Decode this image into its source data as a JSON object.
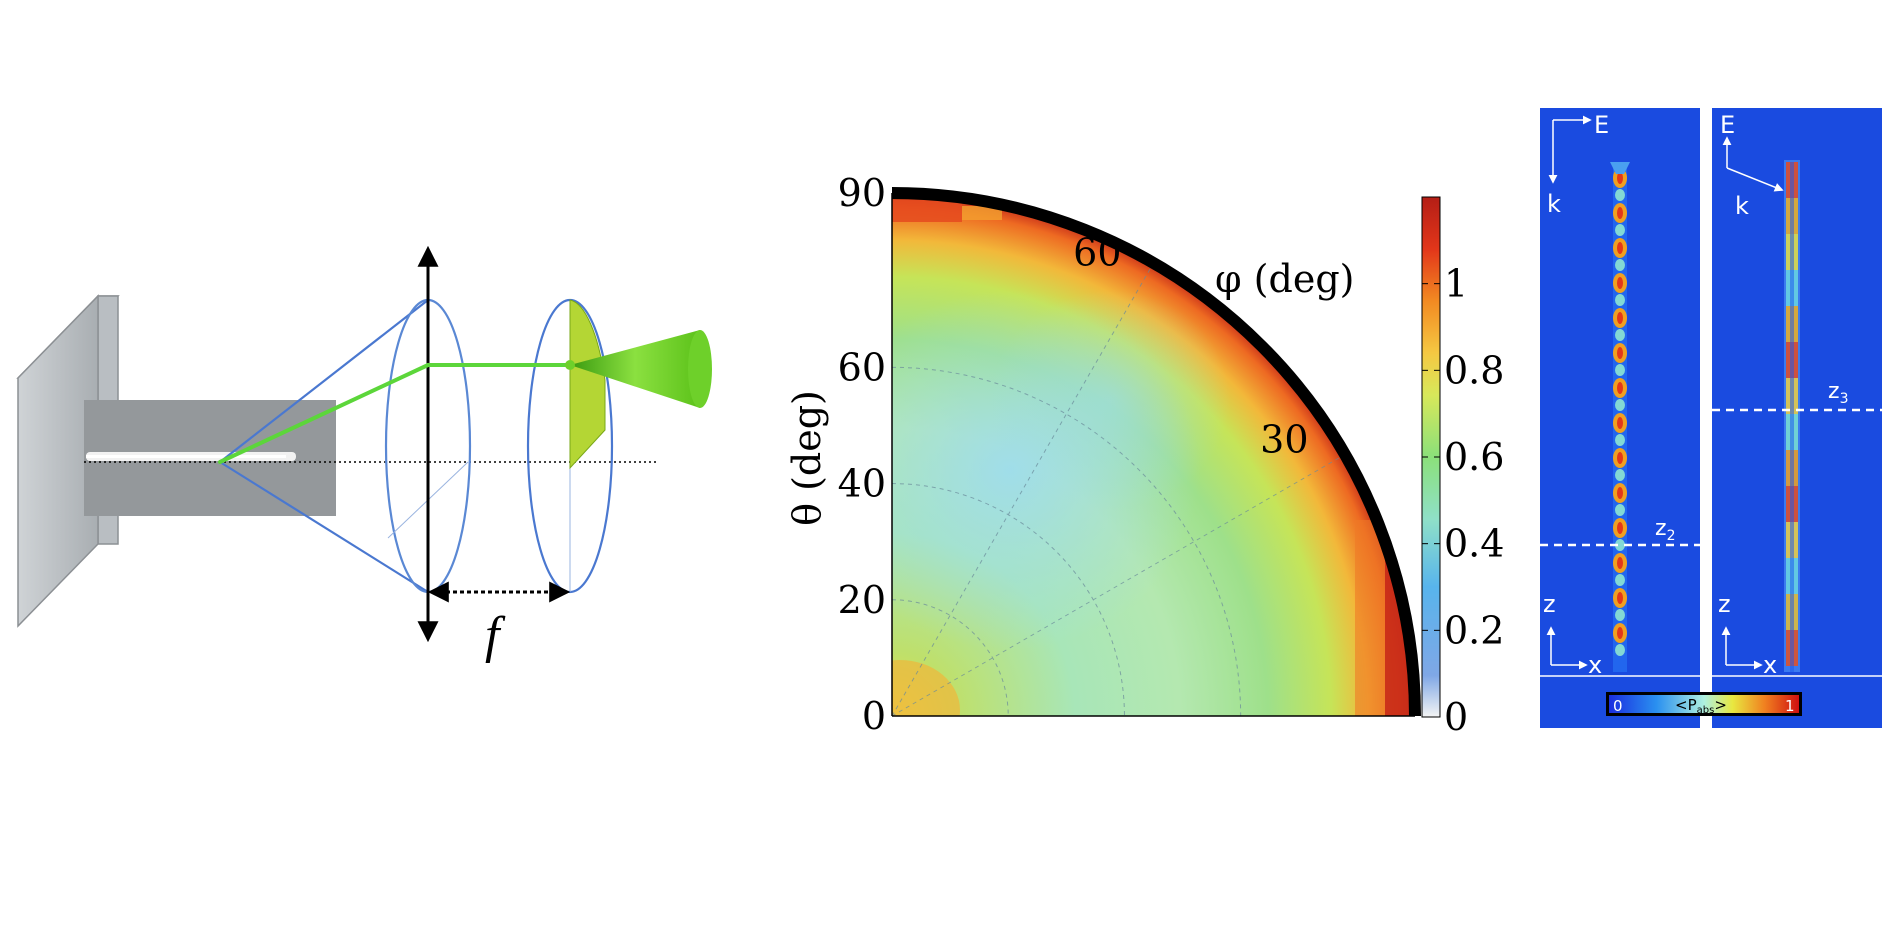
{
  "panel_a": {
    "focal_label": "f"
  },
  "chart_data": {
    "type": "heatmap",
    "title": "",
    "r_label": "θ (deg)",
    "angle_label": "φ (deg)",
    "r_range": [
      0,
      90
    ],
    "angle_range": [
      0,
      90
    ],
    "r_ticks": [
      "0",
      "20",
      "40",
      "60",
      "90"
    ],
    "r_tick_values": [
      0,
      20,
      40,
      60,
      90
    ],
    "angle_ticks": [
      "30",
      "60"
    ],
    "angle_tick_values": [
      30,
      60
    ],
    "colorbar": {
      "ticks": [
        "0",
        "0.2",
        "0.4",
        "0.6",
        "0.8",
        "1"
      ],
      "tick_values": [
        0,
        0.2,
        0.4,
        0.6,
        0.8,
        1.0
      ],
      "range": [
        0,
        1.2
      ],
      "colors": [
        "#f4f4f4",
        "#7fa7e6",
        "#58b4ec",
        "#8fe0c8",
        "#8be07a",
        "#d8e85a",
        "#f5c842",
        "#f28a22",
        "#e2361a",
        "#b41e16"
      ]
    },
    "description_levels": {
      "center": 0.45,
      "mid": 0.65,
      "rim": 0.95,
      "outer_edge": 1.15
    }
  },
  "panel_c": {
    "left": {
      "e_label": "E",
      "k_label": "k",
      "z_axis": "z",
      "x_axis": "x",
      "cut_label": "z",
      "cut_sub": "2"
    },
    "right": {
      "e_label": "E",
      "k_label": "k",
      "z_axis": "z",
      "x_axis": "x",
      "cut_label": "z",
      "cut_sub": "3"
    },
    "colorbar": {
      "min_label": "0",
      "max_label": "1",
      "label_main": "<P",
      "label_sub": "abs",
      "label_end": ">"
    },
    "background_color": "#1a4be0"
  }
}
